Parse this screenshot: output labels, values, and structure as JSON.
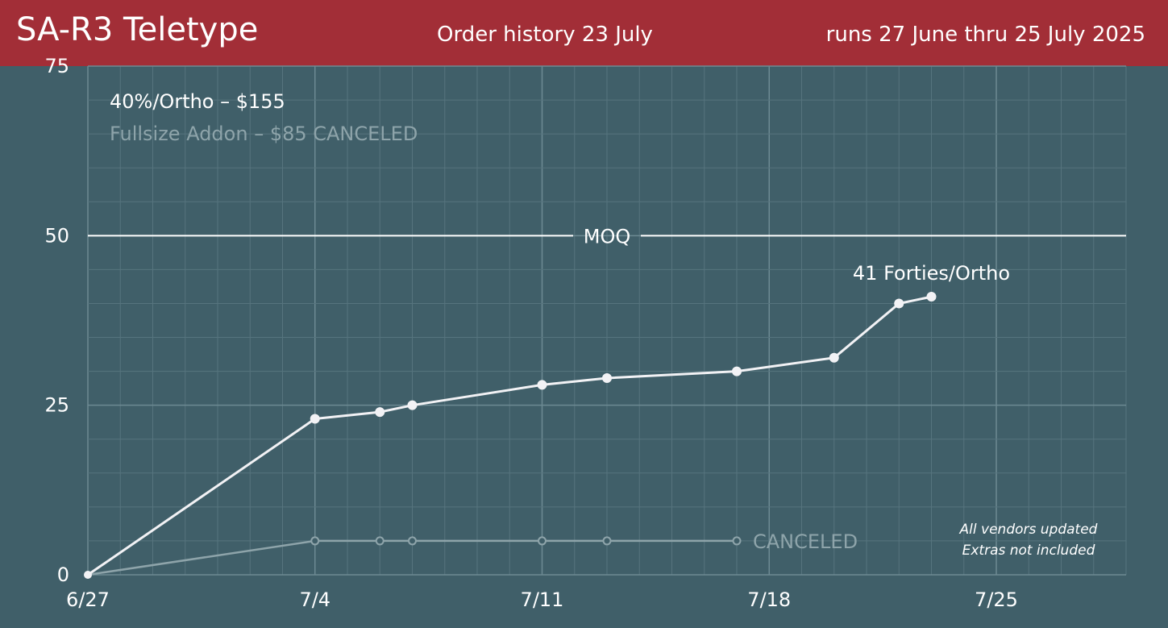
{
  "header": {
    "title": "SA-R3 Teletype",
    "subtitle": "Order history 23 July",
    "runs": "runs 27 June thru 25 July 2025"
  },
  "colors": {
    "header_bg": "#a22e37",
    "plot_bg": "#405f69",
    "main_series": "#f2f2f5",
    "canceled_series": "#8ea4aa",
    "grid": "#56747e"
  },
  "chart_data": {
    "type": "line",
    "x_axis": {
      "range": [
        "2025-06-27",
        "2025-07-29"
      ],
      "ticks": [
        "6/27",
        "7/4",
        "7/11",
        "7/18",
        "7/25"
      ]
    },
    "y_axis": {
      "range": [
        0,
        75
      ],
      "ticks": [
        "0",
        "25",
        "50",
        "75"
      ]
    },
    "grid": true,
    "reference_line": {
      "label": "MOQ",
      "y": 50
    },
    "legend": {
      "placement": "top-left",
      "entries": [
        {
          "label": "40%/Ortho – $155",
          "color": "#ffffff"
        },
        {
          "label": "Fullsize Addon – $85 CANCELED",
          "color": "#8ea4aa"
        }
      ]
    },
    "series": [
      {
        "x": [
          "2025-06-27",
          "2025-07-04",
          "2025-07-06",
          "2025-07-07",
          "2025-07-11",
          "2025-07-13",
          "2025-07-17",
          "2025-07-20",
          "2025-07-22",
          "2025-07-23"
        ],
        "y": [
          0,
          23,
          24,
          25,
          28,
          29,
          30,
          32,
          40,
          41
        ],
        "end_label": "41 Forties/Ortho"
      },
      {
        "x": [
          "2025-06-27",
          "2025-07-04",
          "2025-07-06",
          "2025-07-07",
          "2025-07-11",
          "2025-07-13",
          "2025-07-17"
        ],
        "y": [
          0,
          5,
          5,
          5,
          5,
          5,
          5
        ],
        "end_label": "CANCELED"
      }
    ],
    "notes": [
      "All vendors updated",
      "Extras not included"
    ]
  }
}
